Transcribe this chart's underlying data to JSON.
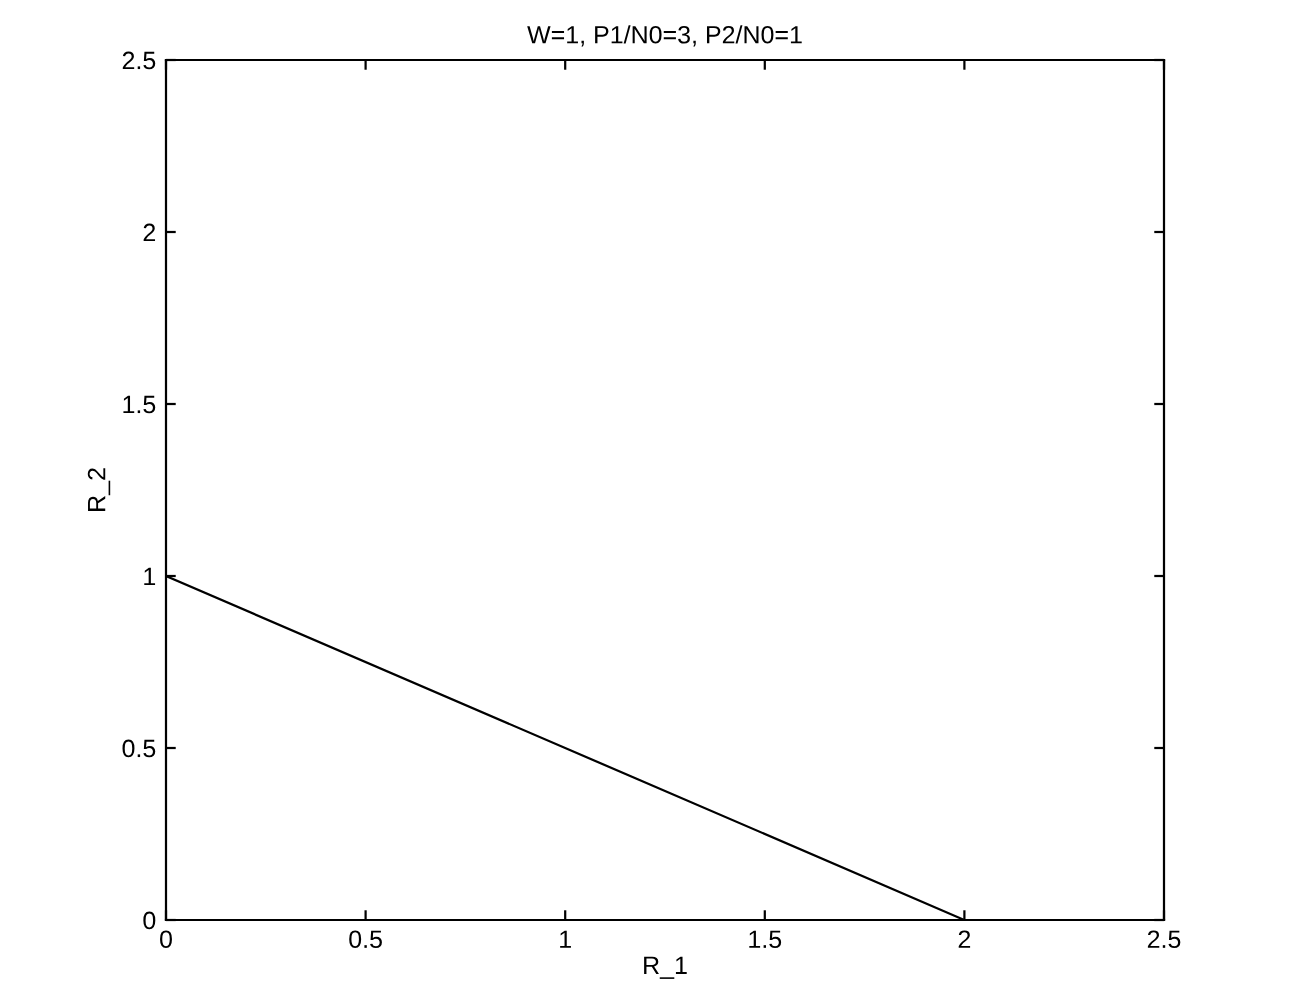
{
  "chart_data": {
    "type": "line",
    "title": "W=1, P1/N0=3, P2/N0=1",
    "xlabel": "R_1",
    "ylabel": "R_2",
    "x": [
      0,
      2
    ],
    "series": [
      {
        "color": "#000000",
        "values": [
          1,
          0
        ]
      }
    ],
    "xlim": [
      0,
      2.5
    ],
    "ylim": [
      0,
      2.5
    ],
    "xticks": [
      0,
      0.5,
      1,
      1.5,
      2,
      2.5
    ],
    "yticks": [
      0,
      0.5,
      1,
      1.5,
      2,
      2.5
    ],
    "grid": false,
    "legend": false,
    "marker": "none",
    "line_style": "solid"
  }
}
